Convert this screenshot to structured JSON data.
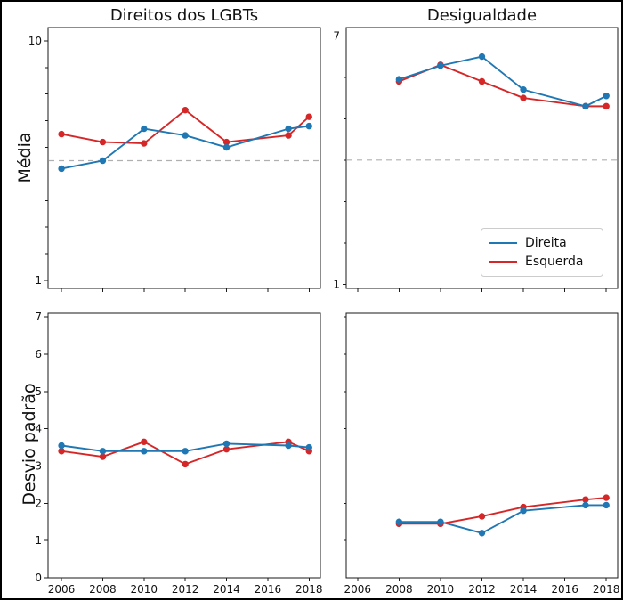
{
  "colors": {
    "direita": "#1f77b4",
    "esquerda": "#d62728",
    "reference_line": "#b0b0b0",
    "spine": "#1a1a1a",
    "background": "#ffffff",
    "figure_border": "#000000"
  },
  "legend": {
    "position": "lower right of top-right chart",
    "items": [
      {
        "label": "Direita",
        "color": "#1f77b4"
      },
      {
        "label": "Esquerda",
        "color": "#d62728"
      }
    ]
  },
  "chart_data": [
    {
      "id": "direitos-lgbts-media",
      "type": "line",
      "title": "Direitos dos LGBTs",
      "ylabel": "Média",
      "x": [
        2006,
        2008,
        2010,
        2012,
        2014,
        2017,
        2018
      ],
      "series": [
        {
          "name": "Direita",
          "color": "#1f77b4",
          "values": [
            5.2,
            5.5,
            6.7,
            6.45,
            6.0,
            6.7,
            6.8
          ]
        },
        {
          "name": "Esquerda",
          "color": "#d62728",
          "values": [
            6.5,
            6.2,
            6.15,
            7.4,
            6.2,
            6.45,
            7.15
          ]
        }
      ],
      "xlim": [
        2005.35,
        2018.55
      ],
      "ylim": [
        0.7,
        10.5
      ],
      "xticks": [
        2006,
        2008,
        2010,
        2012,
        2014,
        2016,
        2018
      ],
      "show_xtick_labels": false,
      "yticks_labeled": [
        1,
        10
      ],
      "yticks_minor": [
        2,
        3,
        4,
        5,
        6,
        7,
        8,
        9
      ],
      "reference_line_y": 5.5,
      "grid": false
    },
    {
      "id": "desigualdade-media",
      "type": "line",
      "title": "Desigualdade",
      "ylabel": "Média",
      "x": [
        2008,
        2010,
        2012,
        2014,
        2017,
        2018
      ],
      "series": [
        {
          "name": "Direita",
          "color": "#1f77b4",
          "values": [
            5.95,
            6.28,
            6.5,
            5.7,
            5.3,
            5.55
          ]
        },
        {
          "name": "Esquerda",
          "color": "#d62728",
          "values": [
            5.9,
            6.3,
            5.9,
            5.5,
            5.3,
            5.3
          ]
        }
      ],
      "xlim": [
        2005.45,
        2018.55
      ],
      "ylim": [
        0.9,
        7.2
      ],
      "xticks": [
        2006,
        2008,
        2010,
        2012,
        2014,
        2016,
        2018
      ],
      "show_xtick_labels": false,
      "yticks_labeled": [
        1,
        7
      ],
      "yticks_minor": [
        2,
        3,
        4,
        5,
        6
      ],
      "reference_line_y": 4,
      "grid": false
    },
    {
      "id": "direitos-lgbts-desvio-padrao",
      "type": "line",
      "title": "",
      "ylabel": "Desvio padrão",
      "x": [
        2006,
        2008,
        2010,
        2012,
        2014,
        2017,
        2018
      ],
      "series": [
        {
          "name": "Direita",
          "color": "#1f77b4",
          "values": [
            3.55,
            3.4,
            3.4,
            3.4,
            3.6,
            3.55,
            3.5
          ]
        },
        {
          "name": "Esquerda",
          "color": "#d62728",
          "values": [
            3.4,
            3.25,
            3.65,
            3.05,
            3.45,
            3.65,
            3.4
          ]
        }
      ],
      "xlim": [
        2005.35,
        2018.55
      ],
      "ylim": [
        0,
        7.1
      ],
      "xticks": [
        2006,
        2008,
        2010,
        2012,
        2014,
        2016,
        2018
      ],
      "show_xtick_labels": true,
      "yticks_labeled": [
        0,
        1,
        2,
        3,
        4,
        5,
        6,
        7
      ],
      "yticks_minor": [],
      "reference_line_y": null,
      "grid": false
    },
    {
      "id": "desigualdade-desvio-padrao",
      "type": "line",
      "title": "",
      "ylabel": "",
      "x": [
        2008,
        2010,
        2012,
        2014,
        2017,
        2018
      ],
      "series": [
        {
          "name": "Direita",
          "color": "#1f77b4",
          "values": [
            1.5,
            1.5,
            1.2,
            1.8,
            1.95,
            1.95
          ]
        },
        {
          "name": "Esquerda",
          "color": "#d62728",
          "values": [
            1.45,
            1.45,
            1.65,
            1.9,
            2.1,
            2.15
          ]
        }
      ],
      "xlim": [
        2005.45,
        2018.55
      ],
      "ylim": [
        0,
        7.1
      ],
      "xticks": [
        2006,
        2008,
        2010,
        2012,
        2014,
        2016,
        2018
      ],
      "show_xtick_labels": true,
      "yticks_labeled": [],
      "yticks_minor": [
        1,
        2,
        3,
        4,
        5,
        6,
        7
      ],
      "reference_line_y": null,
      "grid": false
    }
  ]
}
